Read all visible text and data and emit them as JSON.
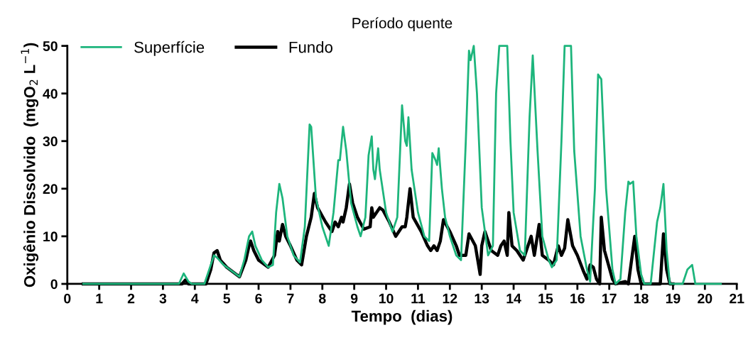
{
  "chart_data": {
    "type": "line",
    "title": "Período quente",
    "xlabel": "Tempo  (dias)",
    "ylabel": "Oxigênio Dissolvido  (mgO$_{2}$ L$^{−1}$)",
    "xlim": [
      0,
      21
    ],
    "xticks": [
      0,
      1,
      2,
      3,
      4,
      5,
      6,
      7,
      8,
      9,
      10,
      11,
      12,
      13,
      14,
      15,
      16,
      17,
      18,
      19,
      20,
      21
    ],
    "ylim": [
      0,
      50
    ],
    "yticks": [
      0,
      10,
      20,
      30,
      40,
      50
    ],
    "grid": false,
    "legend": "top left",
    "marker": "none",
    "line_style": "solid",
    "series": [
      {
        "name": "Superfície",
        "color": "#1db57c",
        "x": [
          0.5,
          3.5,
          3.65,
          3.8,
          3.9,
          4.3,
          4.45,
          4.6,
          4.7,
          4.9,
          5.2,
          5.4,
          5.55,
          5.7,
          5.8,
          5.9,
          6.1,
          6.3,
          6.45,
          6.55,
          6.65,
          6.75,
          6.9,
          7.1,
          7.3,
          7.45,
          7.6,
          7.65,
          7.8,
          8.0,
          8.2,
          8.35,
          8.5,
          8.55,
          8.65,
          8.75,
          8.9,
          9.1,
          9.2,
          9.35,
          9.45,
          9.55,
          9.6,
          9.65,
          9.75,
          9.8,
          10.0,
          10.2,
          10.35,
          10.5,
          10.6,
          10.65,
          10.7,
          10.8,
          11.0,
          11.2,
          11.35,
          11.45,
          11.55,
          11.6,
          11.65,
          11.75,
          11.85,
          12.0,
          12.2,
          12.35,
          12.5,
          12.6,
          12.65,
          12.75,
          12.85,
          13.0,
          13.2,
          13.35,
          13.45,
          13.55,
          13.8,
          13.9,
          14.0,
          14.2,
          14.35,
          14.5,
          14.6,
          14.75,
          14.9,
          15.1,
          15.2,
          15.35,
          15.5,
          15.6,
          15.8,
          15.9,
          16.1,
          16.3,
          16.4,
          16.55,
          16.65,
          16.75,
          16.9,
          17.1,
          17.2,
          17.35,
          17.5,
          17.6,
          17.65,
          17.75,
          17.85,
          18.0,
          18.1,
          18.3,
          18.5,
          18.6,
          18.7,
          18.8,
          18.9,
          19.3,
          19.45,
          19.6,
          19.7,
          20.5
        ],
        "values": [
          0,
          0,
          2.2,
          0.5,
          0,
          0,
          3,
          6,
          5.5,
          4,
          2.5,
          1.5,
          5,
          10,
          11,
          8,
          5,
          3.5,
          4,
          15,
          21,
          18,
          10,
          6,
          4.5,
          12,
          33.5,
          33,
          18,
          12,
          8,
          15,
          26,
          26,
          33,
          28,
          17,
          12,
          10,
          14,
          27,
          31,
          24,
          22,
          28.5,
          24,
          15,
          11,
          14,
          37.5,
          30,
          29,
          35,
          24,
          15,
          10,
          9,
          27.5,
          26,
          25,
          28.5,
          20,
          14,
          10,
          6,
          5,
          30,
          49,
          47,
          50,
          40,
          16,
          6,
          8,
          40,
          50,
          50,
          30,
          15,
          7,
          6,
          35,
          48,
          28,
          10,
          5,
          3.5,
          5,
          30,
          50,
          50,
          28,
          10,
          3,
          0.5,
          20,
          44,
          43,
          20,
          3,
          0,
          1,
          15,
          21.5,
          21,
          21.5,
          10,
          2,
          0,
          0,
          13,
          16,
          21,
          7,
          0,
          0,
          3,
          4,
          0,
          0
        ]
      },
      {
        "name": "Fundo",
        "color": "#000000",
        "x": [
          0.5,
          3.6,
          3.7,
          3.8,
          4.35,
          4.5,
          4.6,
          4.7,
          4.8,
          5.0,
          5.4,
          5.6,
          5.7,
          5.75,
          5.85,
          6.0,
          6.3,
          6.5,
          6.6,
          6.65,
          6.75,
          6.85,
          7.0,
          7.2,
          7.35,
          7.5,
          7.65,
          7.75,
          7.85,
          8.1,
          8.3,
          8.4,
          8.5,
          8.6,
          8.65,
          8.75,
          8.85,
          8.95,
          9.1,
          9.3,
          9.5,
          9.55,
          9.6,
          9.8,
          9.9,
          10.1,
          10.3,
          10.5,
          10.6,
          10.65,
          10.75,
          10.85,
          11.1,
          11.3,
          11.4,
          11.5,
          11.6,
          11.7,
          11.8,
          12.0,
          12.2,
          12.3,
          12.5,
          12.6,
          12.8,
          12.9,
          12.95,
          13.0,
          13.1,
          13.3,
          13.5,
          13.6,
          13.7,
          13.8,
          13.85,
          13.95,
          14.1,
          14.3,
          14.5,
          14.55,
          14.65,
          14.8,
          14.9,
          15.1,
          15.25,
          15.4,
          15.5,
          15.6,
          15.7,
          15.85,
          16.0,
          16.2,
          16.3,
          16.4,
          16.5,
          16.6,
          16.7,
          16.75,
          16.85,
          17.1,
          17.2,
          17.5,
          17.6,
          17.8,
          17.9,
          18.0,
          18.6,
          18.7,
          18.8,
          18.9,
          19.0
        ],
        "values": [
          0,
          0,
          0.8,
          0,
          0,
          3,
          6.5,
          7,
          5,
          3.5,
          1.5,
          5,
          8,
          9,
          7,
          5,
          3.5,
          6,
          11,
          9,
          12.5,
          10,
          8,
          5,
          4,
          10,
          14,
          19,
          16,
          13,
          11,
          13,
          12,
          14,
          13,
          16,
          21,
          17,
          14,
          11.5,
          12,
          16,
          14,
          16,
          15.5,
          13,
          10,
          12,
          12,
          14,
          20,
          14,
          11,
          8,
          7,
          8,
          7,
          9,
          13.5,
          11,
          8,
          6,
          6,
          10.5,
          8,
          4,
          2,
          8,
          11,
          7,
          6,
          8,
          9,
          6,
          15,
          8,
          7,
          5,
          9,
          10,
          6,
          12.5,
          6,
          5,
          4,
          8,
          6,
          7.5,
          13.5,
          8,
          6,
          2.5,
          1,
          4,
          3.5,
          1,
          0,
          14,
          7,
          1,
          0,
          0.5,
          0,
          10,
          3,
          0,
          0,
          10.5,
          3,
          0,
          0
        ]
      }
    ]
  }
}
